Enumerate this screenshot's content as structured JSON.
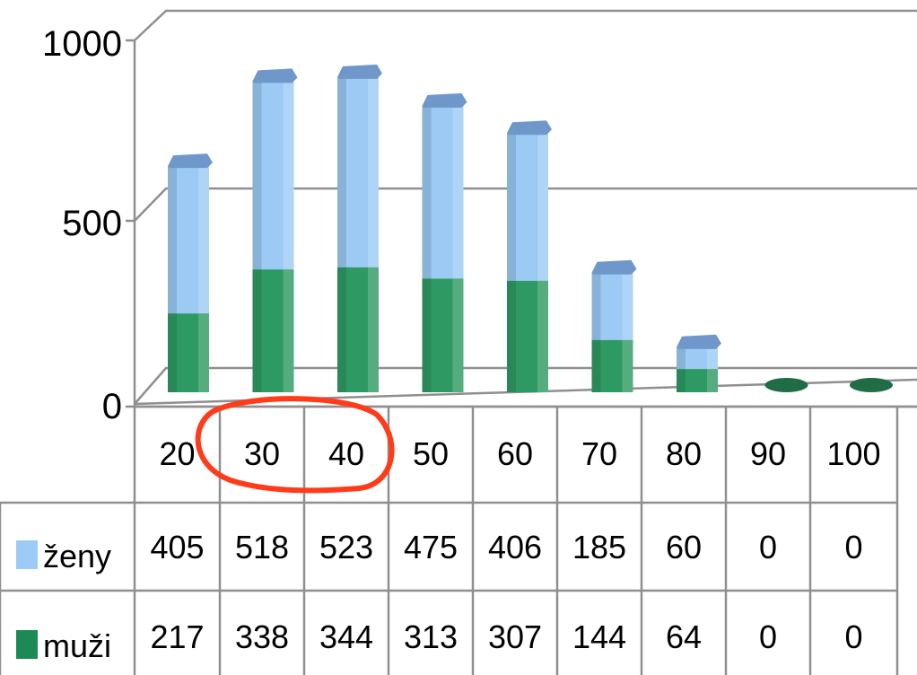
{
  "chart_data": {
    "type": "bar",
    "stacked": true,
    "style": "3d-cylinder",
    "categories": [
      "20",
      "30",
      "40",
      "50",
      "60",
      "70",
      "80",
      "90",
      "100"
    ],
    "series": [
      {
        "name": "muži",
        "values": [
          217,
          338,
          344,
          313,
          307,
          144,
          64,
          0,
          0
        ],
        "color": "#2e9a63",
        "legend_color": "#1d8a55"
      },
      {
        "name": "ženy",
        "values": [
          405,
          518,
          523,
          475,
          406,
          185,
          60,
          0,
          0
        ],
        "color": "#9ccaf4",
        "legend_color": "#9dcbf5"
      }
    ],
    "yticks": [
      "0",
      "500",
      "1000"
    ],
    "ylim": [
      0,
      1000
    ],
    "grid": true,
    "data_table": true,
    "highlight": {
      "categories": [
        "30",
        "40"
      ],
      "color": "#ff3b1a",
      "shape": "hand-drawn ellipse"
    }
  }
}
